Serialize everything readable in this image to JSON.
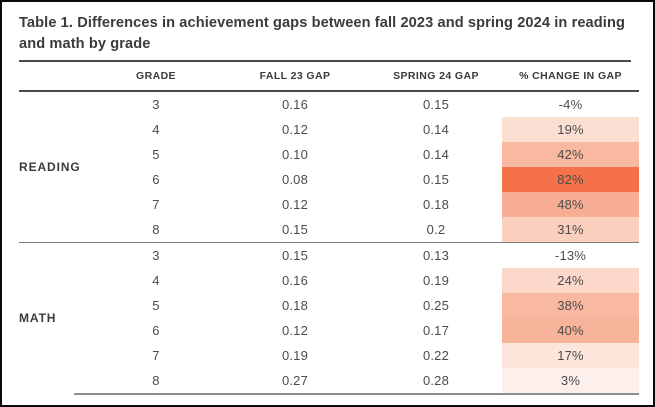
{
  "title": "Table 1. Differences in achievement gaps between fall 2023 and spring 2024 in reading and math by grade",
  "table": {
    "columns": [
      {
        "key": "grade",
        "label": "GRADE"
      },
      {
        "key": "fall",
        "label": "FALL 23 GAP"
      },
      {
        "key": "spring",
        "label": "SPRING 24 GAP"
      },
      {
        "key": "change",
        "label": "% CHANGE IN GAP"
      }
    ],
    "sections": [
      {
        "label": "READING",
        "rows": [
          {
            "grade": "3",
            "fall": "0.16",
            "spring": "0.15",
            "change": "-4%",
            "fill": "none"
          },
          {
            "grade": "4",
            "fall": "0.12",
            "spring": "0.14",
            "change": "19%",
            "fill": "#fbdfd3"
          },
          {
            "grade": "5",
            "fall": "0.10",
            "spring": "0.14",
            "change": "42%",
            "fill": "#f9b9a1"
          },
          {
            "grade": "6",
            "fall": "0.08",
            "spring": "0.15",
            "change": "82%",
            "fill": "#f4714a"
          },
          {
            "grade": "7",
            "fall": "0.12",
            "spring": "0.18",
            "change": "48%",
            "fill": "#f8ae94"
          },
          {
            "grade": "8",
            "fall": "0.15",
            "spring": "0.2",
            "change": "31%",
            "fill": "#facfbd"
          }
        ]
      },
      {
        "label": "MATH",
        "rows": [
          {
            "grade": "3",
            "fall": "0.15",
            "spring": "0.13",
            "change": "-13%",
            "fill": "none"
          },
          {
            "grade": "4",
            "fall": "0.16",
            "spring": "0.19",
            "change": "24%",
            "fill": "#fbd8ca"
          },
          {
            "grade": "5",
            "fall": "0.18",
            "spring": "0.25",
            "change": "38%",
            "fill": "#f9b8a1"
          },
          {
            "grade": "6",
            "fall": "0.12",
            "spring": "0.17",
            "change": "40%",
            "fill": "#f8b49b"
          },
          {
            "grade": "7",
            "fall": "0.19",
            "spring": "0.22",
            "change": "17%",
            "fill": "#fce5da"
          },
          {
            "grade": "8",
            "fall": "0.27",
            "spring": "0.28",
            "change": "3%",
            "fill": "#fdf0ec"
          }
        ]
      }
    ]
  },
  "colors": {
    "frame_border": "#0a0a0a",
    "title_text": "#3b3b3b",
    "body_text": "#4c4c4c",
    "rule_dark": "#4a4a4a",
    "rule_light": "#8d8d8d",
    "highlight_max": "#f4714a"
  },
  "chart_data": {
    "type": "table",
    "title": "Table 1. Differences in achievement gaps between fall 2023 and spring 2024 in reading and math by grade",
    "columns": [
      "GRADE",
      "FALL 23 GAP",
      "SPRING 24 GAP",
      "% CHANGE IN GAP"
    ],
    "reading_rows": [
      [
        3,
        0.16,
        0.15,
        "-4%"
      ],
      [
        4,
        0.12,
        0.14,
        "19%"
      ],
      [
        5,
        0.1,
        0.14,
        "42%"
      ],
      [
        6,
        0.08,
        0.15,
        "82%"
      ],
      [
        7,
        0.12,
        0.18,
        "48%"
      ],
      [
        8,
        0.15,
        0.2,
        "31%"
      ]
    ],
    "math_rows": [
      [
        3,
        0.15,
        0.13,
        "-13%"
      ],
      [
        4,
        0.16,
        0.19,
        "24%"
      ],
      [
        5,
        0.18,
        0.25,
        "38%"
      ],
      [
        6,
        0.12,
        0.17,
        "40%"
      ],
      [
        7,
        0.19,
        0.22,
        "17%"
      ],
      [
        8,
        0.27,
        0.28,
        "3%"
      ]
    ]
  }
}
